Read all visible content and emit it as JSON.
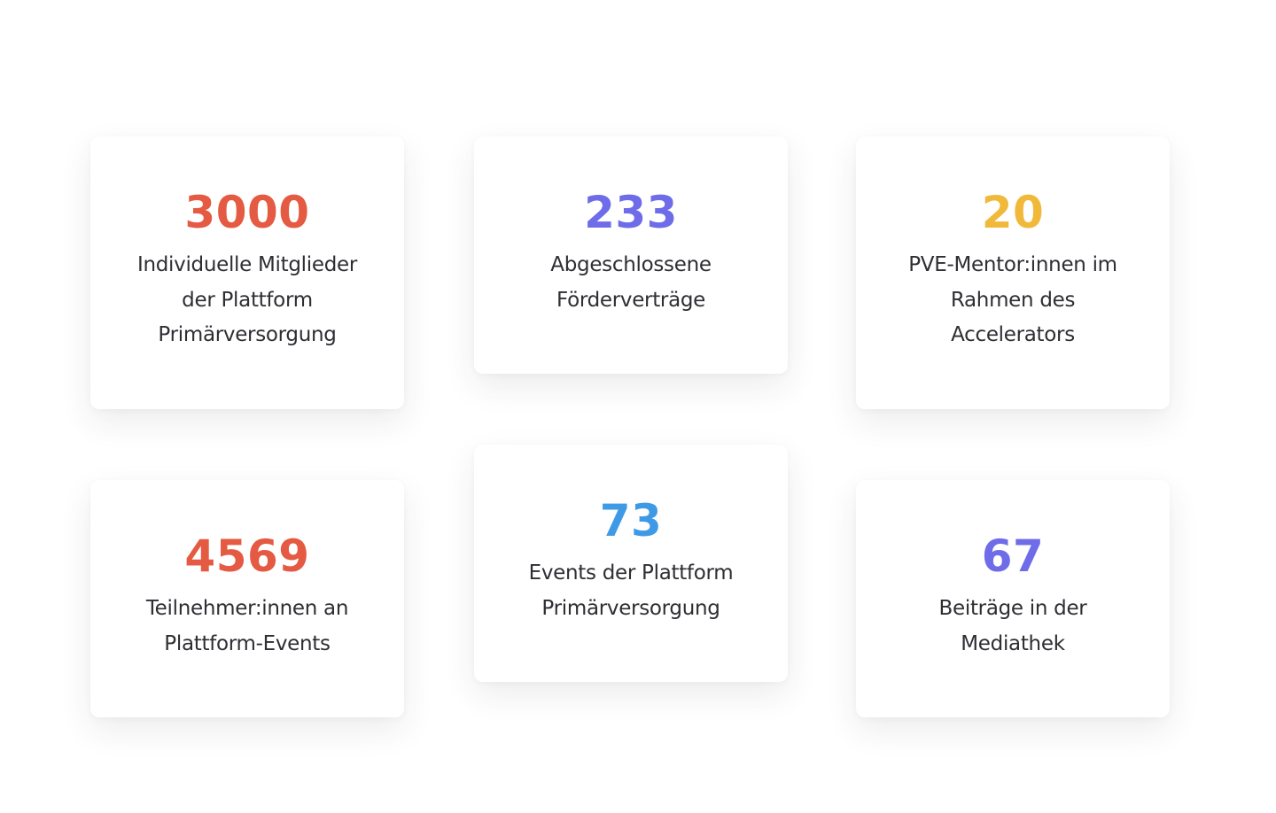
{
  "stats": [
    {
      "value": "3000",
      "label": "Individuelle Mitglieder der Plattform Primärversorgung",
      "color": "#e55a42"
    },
    {
      "value": "233",
      "label": "Abgeschlossene Förderverträge",
      "color": "#6f6ce9"
    },
    {
      "value": "20",
      "label": "PVE-Mentor:innen im Rahmen des Accelerators",
      "color": "#f0b93a"
    },
    {
      "value": "4569",
      "label": "Teilnehmer:innen an Plattform-Events",
      "color": "#e55a42"
    },
    {
      "value": "73",
      "label": "Events der Plattform Primärversorgung",
      "color": "#3f9ae6"
    },
    {
      "value": "67",
      "label": "Beiträge in der Mediathek",
      "color": "#6f6ce9"
    }
  ]
}
